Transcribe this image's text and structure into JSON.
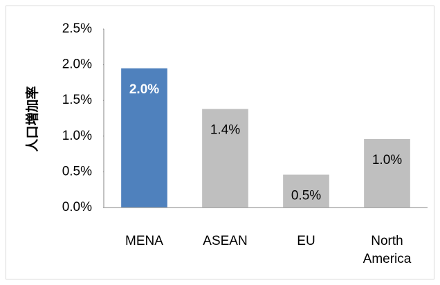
{
  "chart_data": {
    "type": "bar",
    "y_label": "人口増加率",
    "categories": [
      "MENA",
      "ASEAN",
      "EU",
      "North America"
    ],
    "values": [
      1.95,
      1.38,
      0.46,
      0.96
    ],
    "value_labels": [
      "2.0%",
      "1.4%",
      "0.5%",
      "1.0%"
    ],
    "colors": [
      "#4f81bd",
      "#bfbfbf",
      "#bfbfbf",
      "#bfbfbf"
    ],
    "ylim": [
      0,
      2.5
    ],
    "yticks": [
      {
        "value": 0,
        "label": "0.0%"
      },
      {
        "value": 0.5,
        "label": "0.5%"
      },
      {
        "value": 1,
        "label": "1.0%"
      },
      {
        "value": 1.5,
        "label": "1.5%"
      },
      {
        "value": 2,
        "label": "2.0%"
      },
      {
        "value": 2.5,
        "label": "2.5%"
      }
    ],
    "grid": false
  }
}
